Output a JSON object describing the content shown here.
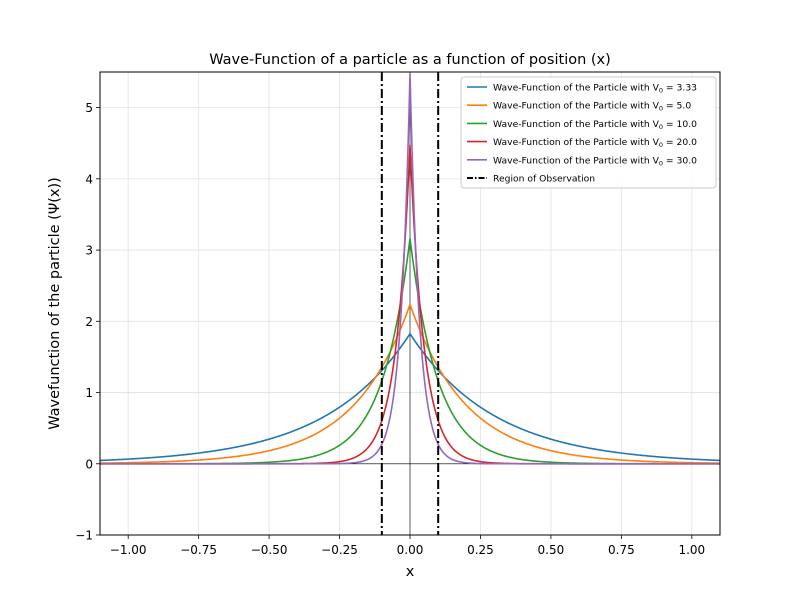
{
  "chart_data": {
    "type": "line",
    "title": "Wave-Function of a particle as a function of position (x)",
    "xlabel": "x",
    "ylabel": "Wavefunction of the particle (Ψ(x))",
    "xlim": [
      -1.1,
      1.1
    ],
    "ylim": [
      -1,
      5.5
    ],
    "xticks": [
      -1.0,
      -0.75,
      -0.5,
      -0.25,
      0.0,
      0.25,
      0.5,
      0.75,
      1.0
    ],
    "xtick_labels": [
      "−1.00",
      "−0.75",
      "−0.50",
      "−0.25",
      "0.00",
      "0.25",
      "0.50",
      "0.75",
      "1.00"
    ],
    "yticks": [
      -1,
      0,
      1,
      2,
      3,
      4,
      5
    ],
    "ytick_labels": [
      "−1",
      "0",
      "1",
      "2",
      "3",
      "4",
      "5"
    ],
    "grid": true,
    "legend_position": "top-right",
    "legend_prefix": "Wave-Function of the Particle with V",
    "legend_subscript": "0",
    "series": [
      {
        "V0": "3.33",
        "peak": 1.826,
        "decay": 3.33,
        "color": "#1f77b4",
        "x": [
          -1.1,
          -1.0,
          -0.75,
          -0.5,
          -0.25,
          -0.1,
          0.0,
          0.1,
          0.25,
          0.5,
          0.75,
          1.0,
          1.1
        ],
        "y": [
          0.047,
          0.065,
          0.15,
          0.345,
          0.794,
          1.311,
          1.826,
          1.311,
          0.794,
          0.345,
          0.15,
          0.065,
          0.047
        ]
      },
      {
        "V0": "5.0",
        "peak": 2.236,
        "decay": 5.0,
        "color": "#ff7f0e",
        "x": [
          -1.1,
          -1.0,
          -0.75,
          -0.5,
          -0.25,
          -0.1,
          0.0,
          0.1,
          0.25,
          0.5,
          0.75,
          1.0,
          1.1
        ],
        "y": [
          0.009,
          0.015,
          0.053,
          0.184,
          0.64,
          1.356,
          2.236,
          1.356,
          0.64,
          0.184,
          0.053,
          0.015,
          0.009
        ]
      },
      {
        "V0": "10.0",
        "peak": 3.162,
        "decay": 10.0,
        "color": "#2ca02c",
        "x": [
          -1.1,
          -1.0,
          -0.75,
          -0.5,
          -0.25,
          -0.1,
          0.0,
          0.1,
          0.25,
          0.5,
          0.75,
          1.0,
          1.1
        ],
        "y": [
          0.0,
          0.0,
          0.002,
          0.021,
          0.26,
          1.163,
          3.162,
          1.163,
          0.26,
          0.021,
          0.002,
          0.0,
          0.0
        ]
      },
      {
        "V0": "20.0",
        "peak": 4.472,
        "decay": 20.0,
        "color": "#d62728",
        "x": [
          -1.1,
          -1.0,
          -0.75,
          -0.5,
          -0.25,
          -0.1,
          0.0,
          0.1,
          0.25,
          0.5,
          0.75,
          1.0,
          1.1
        ],
        "y": [
          0.0,
          0.0,
          0.0,
          0.0,
          0.03,
          0.605,
          4.472,
          0.605,
          0.03,
          0.0,
          0.0,
          0.0,
          0.0
        ]
      },
      {
        "V0": "30.0",
        "peak": 5.477,
        "decay": 30.0,
        "color": "#9467bd",
        "x": [
          -1.1,
          -1.0,
          -0.75,
          -0.5,
          -0.25,
          -0.1,
          0.0,
          0.1,
          0.25,
          0.5,
          0.75,
          1.0,
          1.1
        ],
        "y": [
          0.0,
          0.0,
          0.0,
          0.0,
          0.003,
          0.273,
          5.477,
          0.273,
          0.003,
          0.0,
          0.0,
          0.0,
          0.0
        ]
      }
    ],
    "observation_region": {
      "label": "Region of Observation",
      "x": [
        -0.1,
        0.1
      ],
      "color": "#000000"
    },
    "reference_lines": {
      "x0": 0,
      "y0": 0
    }
  }
}
